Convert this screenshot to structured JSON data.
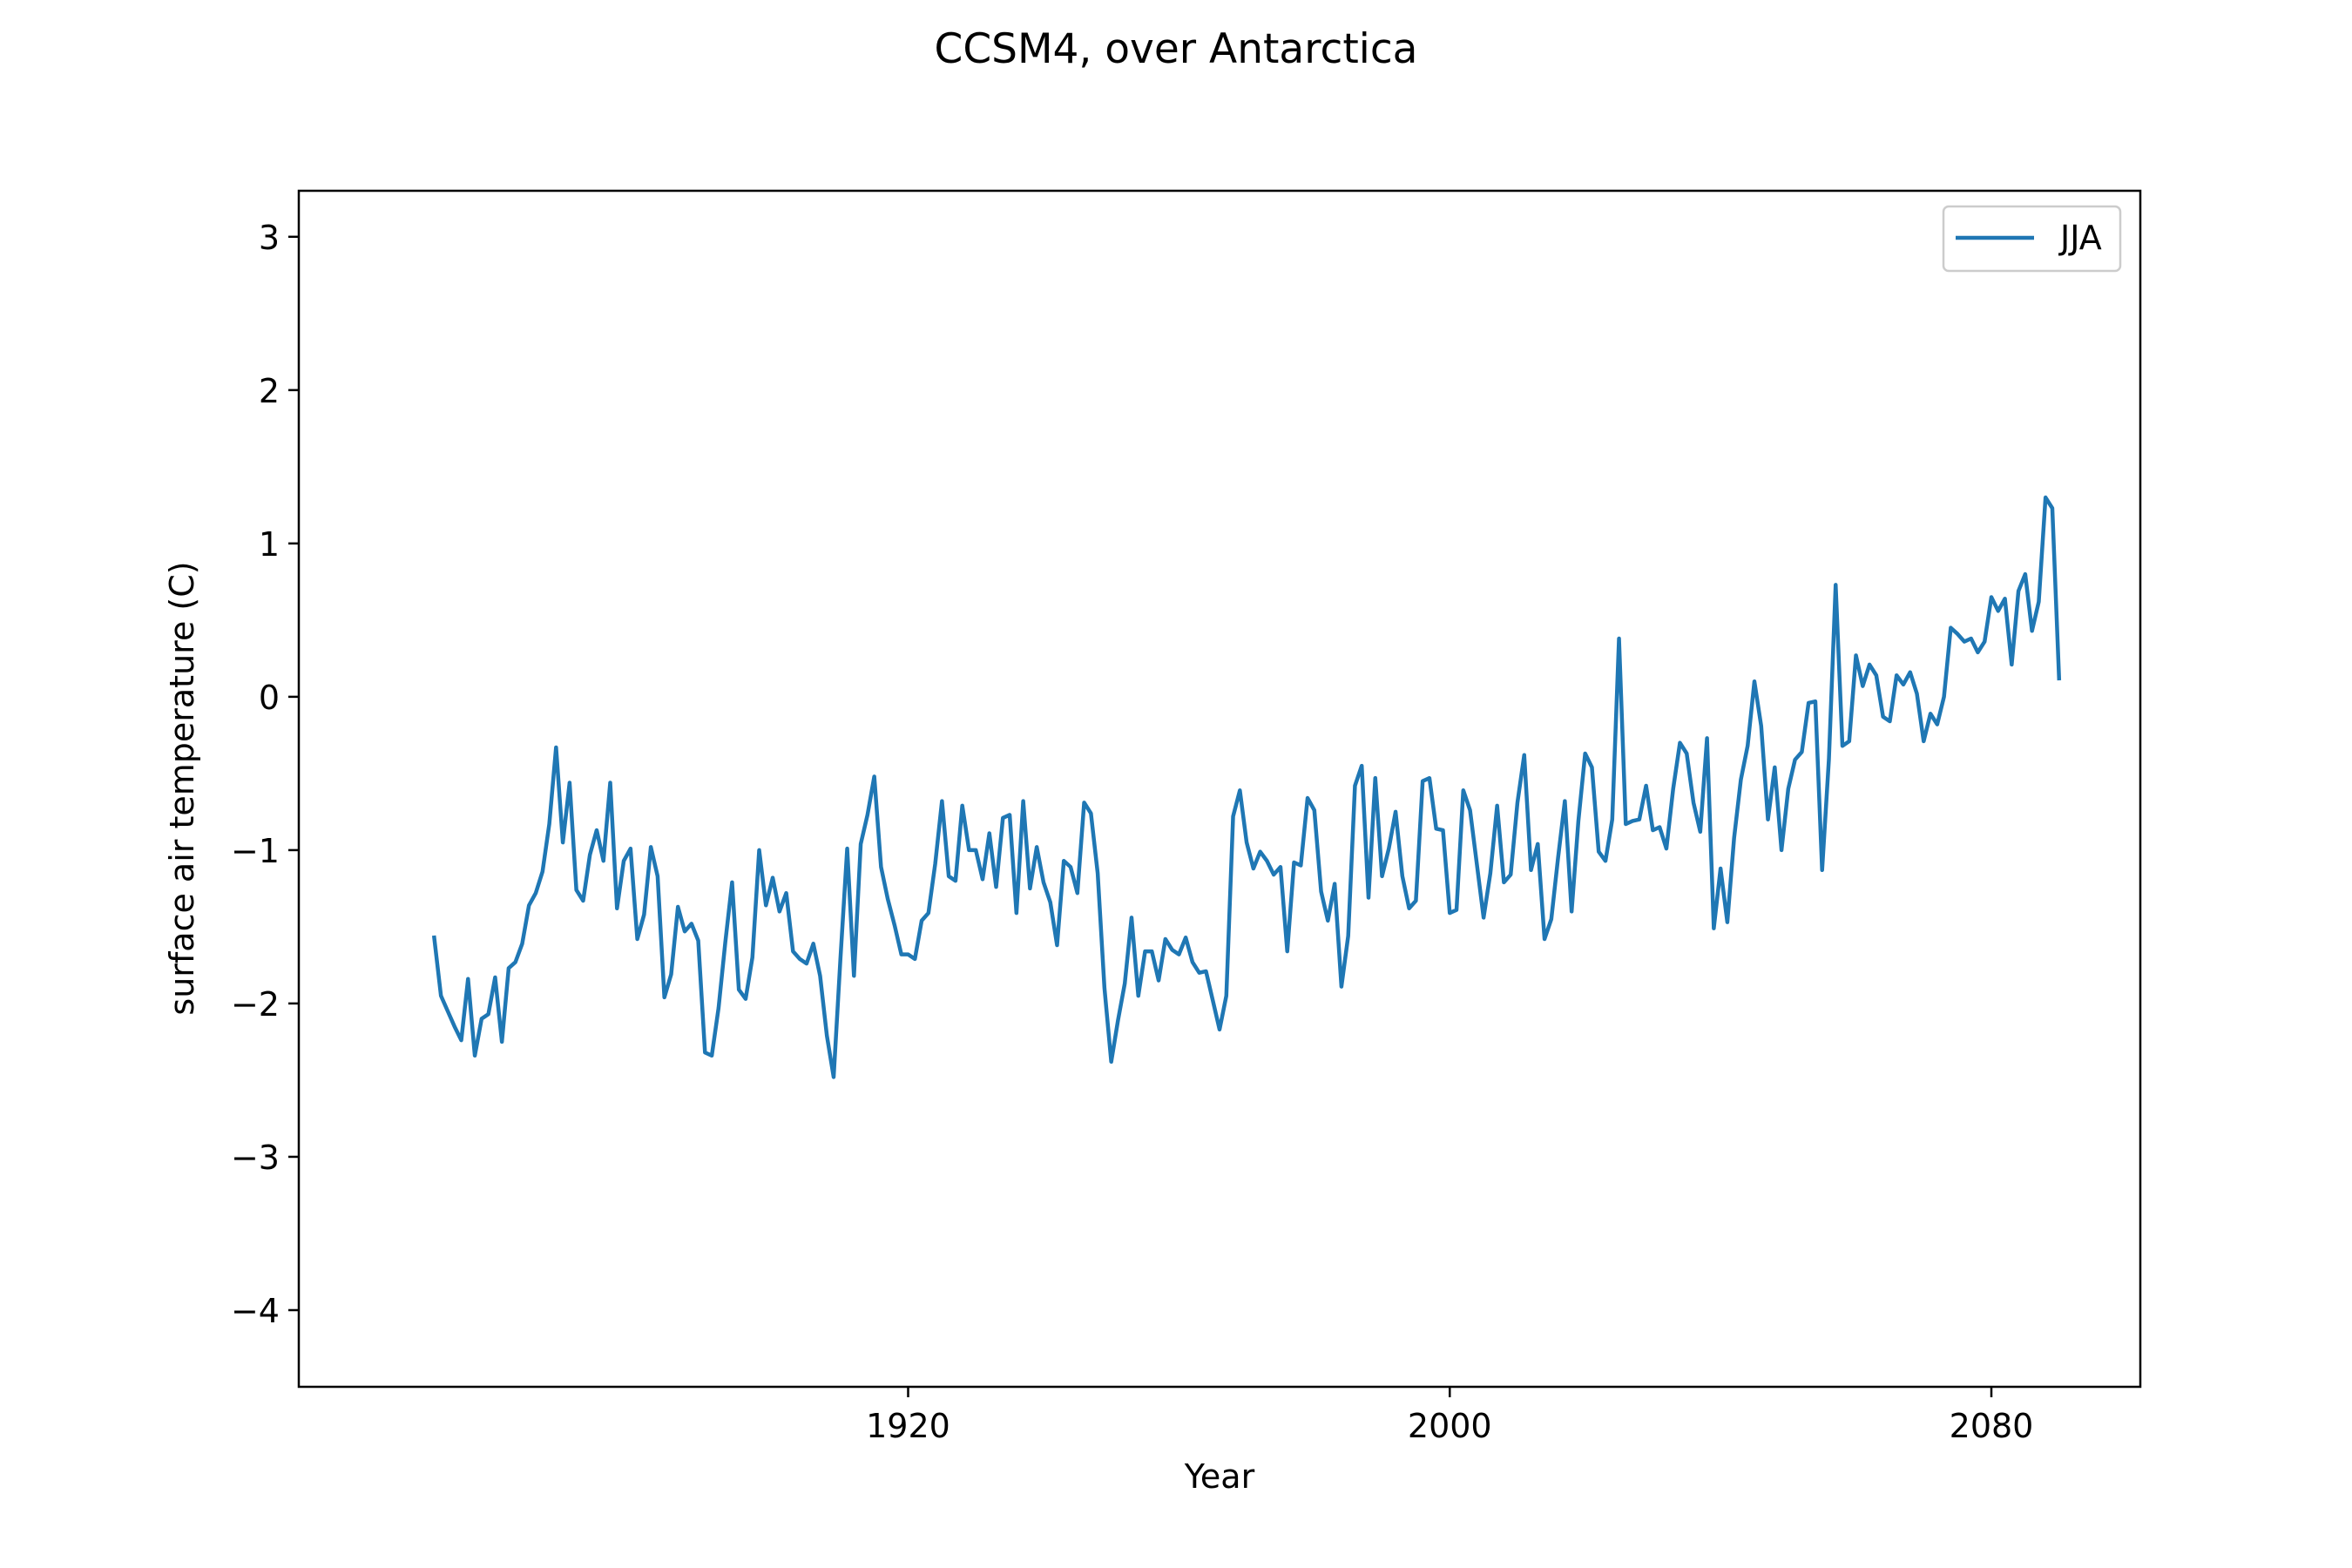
{
  "chart_data": {
    "type": "line",
    "title": "CCSM4, over Antarctica",
    "xlabel": "Year",
    "ylabel": "surface air temperature (C)",
    "xlim": [
      1830,
      2102
    ],
    "ylim": [
      -4.5,
      3.3
    ],
    "xticks": [
      1920,
      2000,
      2080
    ],
    "yticks": [
      3,
      2,
      1,
      0,
      -1,
      -2,
      -3,
      -4
    ],
    "ytick_labels": [
      "3",
      "2",
      "1",
      "0",
      "−1",
      "−2",
      "−3",
      "−4"
    ],
    "legend_position": "top-right",
    "grid": false,
    "series": [
      {
        "name": "JJA",
        "color": "#1f77b4",
        "x_start": 1850,
        "x_step": 1,
        "values": [
          -1.57,
          -1.95,
          -2.05,
          -2.15,
          -2.24,
          -1.84,
          -2.34,
          -2.1,
          -2.07,
          -1.83,
          -2.25,
          -1.77,
          -1.73,
          -1.61,
          -1.36,
          -1.28,
          -1.14,
          -0.83,
          -0.33,
          -0.95,
          -0.56,
          -1.26,
          -1.33,
          -1.03,
          -0.87,
          -1.07,
          -0.56,
          -1.38,
          -1.07,
          -0.99,
          -1.58,
          -1.42,
          -0.98,
          -1.17,
          -1.96,
          -1.81,
          -1.37,
          -1.53,
          -1.48,
          -1.59,
          -2.32,
          -2.34,
          -2.03,
          -1.6,
          -1.21,
          -1.91,
          -1.97,
          -1.7,
          -1.0,
          -1.36,
          -1.18,
          -1.4,
          -1.28,
          -1.66,
          -1.71,
          -1.74,
          -1.61,
          -1.82,
          -2.21,
          -2.48,
          -1.71,
          -0.99,
          -1.82,
          -0.96,
          -0.77,
          -0.52,
          -1.11,
          -1.32,
          -1.49,
          -1.68,
          -1.68,
          -1.71,
          -1.46,
          -1.41,
          -1.09,
          -0.68,
          -1.17,
          -1.2,
          -0.71,
          -1.0,
          -1.0,
          -1.19,
          -0.89,
          -1.24,
          -0.79,
          -0.77,
          -1.41,
          -0.68,
          -1.25,
          -0.98,
          -1.21,
          -1.34,
          -1.62,
          -1.07,
          -1.11,
          -1.28,
          -0.69,
          -0.76,
          -1.15,
          -1.9,
          -2.38,
          -2.11,
          -1.87,
          -1.44,
          -1.95,
          -1.66,
          -1.66,
          -1.85,
          -1.58,
          -1.65,
          -1.68,
          -1.57,
          -1.73,
          -1.8,
          -1.79,
          -1.98,
          -2.17,
          -1.95,
          -0.78,
          -0.61,
          -0.95,
          -1.12,
          -1.01,
          -1.07,
          -1.16,
          -1.11,
          -1.66,
          -1.08,
          -1.1,
          -0.66,
          -0.74,
          -1.27,
          -1.46,
          -1.22,
          -1.89,
          -1.56,
          -0.58,
          -0.45,
          -1.31,
          -0.53,
          -1.17,
          -0.99,
          -0.75,
          -1.17,
          -1.38,
          -1.33,
          -0.55,
          -0.53,
          -0.86,
          -0.87,
          -1.41,
          -1.39,
          -0.61,
          -0.74,
          -1.09,
          -1.44,
          -1.15,
          -0.71,
          -1.21,
          -1.16,
          -0.69,
          -0.38,
          -1.13,
          -0.96,
          -1.58,
          -1.45,
          -1.05,
          -0.68,
          -1.4,
          -0.81,
          -0.37,
          -0.46,
          -1.01,
          -1.07,
          -0.8,
          0.38,
          -0.83,
          -0.81,
          -0.8,
          -0.58,
          -0.87,
          -0.85,
          -0.99,
          -0.6,
          -0.3,
          -0.37,
          -0.69,
          -0.88,
          -0.27,
          -1.51,
          -1.12,
          -1.47,
          -0.92,
          -0.54,
          -0.32,
          0.1,
          -0.19,
          -0.8,
          -0.46,
          -1.0,
          -0.6,
          -0.41,
          -0.36,
          -0.04,
          -0.03,
          -1.13,
          -0.41,
          0.73,
          -0.32,
          -0.29,
          0.27,
          0.07,
          0.21,
          0.14,
          -0.13,
          -0.16,
          0.14,
          0.08,
          0.16,
          0.02,
          -0.29,
          -0.11,
          -0.18,
          0.0,
          0.45,
          0.41,
          0.36,
          0.38,
          0.29,
          0.36,
          0.65,
          0.56,
          0.64,
          0.21,
          0.69,
          0.8,
          0.43,
          0.62,
          1.3,
          1.23,
          0.12
        ]
      }
    ]
  }
}
